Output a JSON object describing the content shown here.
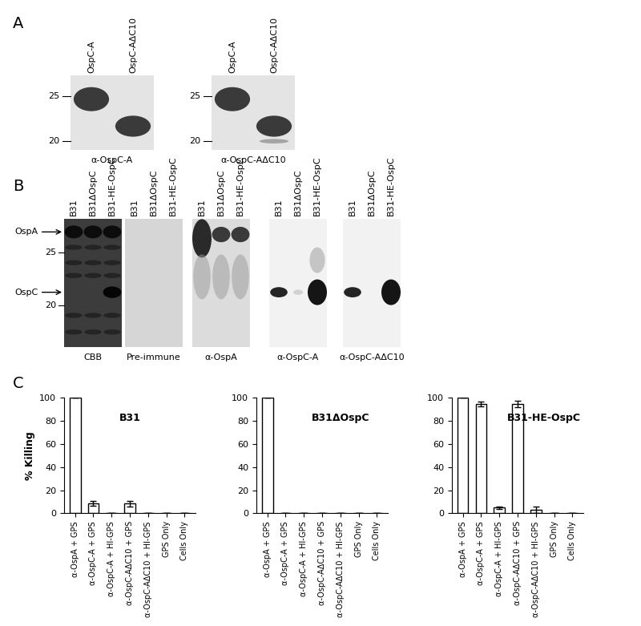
{
  "panels": {
    "A": {
      "label": "A",
      "blots": [
        {
          "lanes": [
            "OspC-A",
            "OspC-AΔC10"
          ],
          "caption": "α-OspC-A",
          "markers": [
            25,
            20
          ]
        },
        {
          "lanes": [
            "OspC-A",
            "OspC-AΔC10"
          ],
          "caption": "α-OspC-AΔC10",
          "markers": [
            25,
            20
          ]
        }
      ]
    },
    "B": {
      "label": "B",
      "blots": [
        {
          "lanes": [
            "B31",
            "B31ΔOspC",
            "B31-HE-OspC"
          ],
          "caption": "CBB",
          "markers": [
            25,
            20
          ],
          "band_names": [
            "OspA",
            "OspC"
          ]
        },
        {
          "lanes": [
            "B31",
            "B31ΔOspC",
            "B31-HE-OspC"
          ],
          "caption": "Pre-immune"
        },
        {
          "lanes": [
            "B31",
            "B31ΔOspC",
            "B31-HE-OspC"
          ],
          "caption": "α-OspA"
        },
        {
          "lanes": [
            "B31",
            "B31ΔOspC",
            "B31-HE-OspC"
          ],
          "caption": "α-OspC-A"
        },
        {
          "lanes": [
            "B31",
            "B31ΔOspC",
            "B31-HE-OspC"
          ],
          "caption": "α-OspC-AΔC10"
        }
      ]
    },
    "C": {
      "label": "C"
    }
  },
  "chart_data": [
    {
      "type": "bar",
      "title": "B31",
      "ylabel": "% Killing",
      "categories": [
        "α-OspA + GPS",
        "α-OspC-A + GPS",
        "α-OspC-A + HI-GPS",
        "α-OspC-AΔC10 + GPS",
        "α-OspC-AΔC10 + HI-GPS",
        "GPS Only",
        "Cells Only"
      ],
      "values": [
        100,
        8.5,
        0,
        8.5,
        0,
        0,
        0
      ],
      "error": [
        0,
        2,
        0,
        2.5,
        0,
        0,
        0
      ],
      "color": "#ffffff",
      "ylim": [
        0,
        100
      ],
      "yticks": [
        0,
        20,
        40,
        60,
        80,
        100
      ]
    },
    {
      "type": "bar",
      "title": "B31ΔOspC",
      "categories": [
        "α-OspA + GPS",
        "α-OspC-A + GPS",
        "α-OspC-A + HI-GPS",
        "α-OspC-AΔC10 + GPS",
        "α-OspC-AΔC10 + HI-GPS",
        "GPS Only",
        "Cells Only"
      ],
      "values": [
        100,
        0,
        0,
        0,
        0,
        0,
        0
      ],
      "error": [
        0,
        0,
        0,
        0,
        0,
        0,
        0
      ],
      "color": "#ffffff",
      "ylim": [
        0,
        100
      ],
      "yticks": [
        0,
        20,
        40,
        60,
        80,
        100
      ]
    },
    {
      "type": "bar",
      "title": "B31-HE-OspC",
      "categories": [
        "α-OspA + GPS",
        "α-OspC-A + GPS",
        "α-OspC-A + HI-GPS",
        "α-OspC-AΔC10 + GPS",
        "α-OspC-AΔC10 + HI-GPS",
        "GPS Only",
        "Cells Only"
      ],
      "values": [
        100,
        94.5,
        5,
        94.5,
        3,
        0,
        0
      ],
      "error": [
        0,
        2,
        1,
        3,
        3,
        0,
        0
      ],
      "color": "#ffffff",
      "ylim": [
        0,
        100
      ],
      "yticks": [
        0,
        20,
        40,
        60,
        80,
        100
      ]
    }
  ]
}
